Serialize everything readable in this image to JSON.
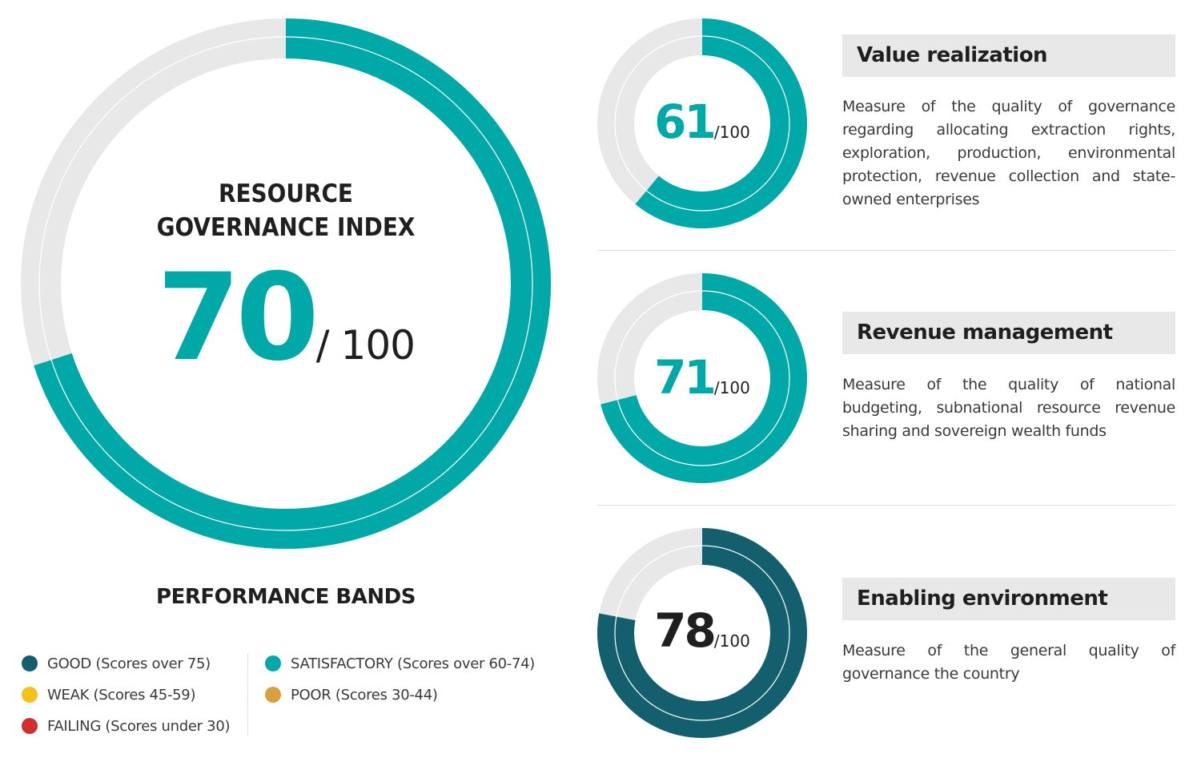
{
  "colors": {
    "accent": "#00a9a8",
    "dark": "#145f6d",
    "track": "#e8e8e8",
    "weak": "#f5c21b",
    "poor": "#d9a03f",
    "failing": "#d12f2f"
  },
  "chart_data": [
    {
      "type": "donut",
      "name": "Resource Governance Index",
      "value": 70,
      "max": 100,
      "color": "#00a9a8"
    },
    {
      "type": "donut",
      "name": "Value realization",
      "value": 61,
      "max": 100,
      "color": "#00a9a8"
    },
    {
      "type": "donut",
      "name": "Revenue management",
      "value": 71,
      "max": 100,
      "color": "#00a9a8"
    },
    {
      "type": "donut",
      "name": "Enabling environment",
      "value": 78,
      "max": 100,
      "color": "#145f6d"
    }
  ],
  "main": {
    "title_line1": "RESOURCE",
    "title_line2": "GOVERNANCE INDEX",
    "score": "70",
    "denominator": "/ 100"
  },
  "components": [
    {
      "score": "61",
      "denominator": "/100",
      "title": "Value realization",
      "description": "Measure of the quality of governance regarding allocating extraction rights, exploration, production, environmental protection, revenue collection and state-owned enterprises"
    },
    {
      "score": "71",
      "denominator": "/100",
      "title": "Revenue management",
      "description": "Measure of the quality of national budgeting, subnational resource revenue sharing and sovereign wealth funds"
    },
    {
      "score": "78",
      "denominator": "/100",
      "title": "Enabling environment",
      "description": "Measure of the general quality of governance the country"
    }
  ],
  "bands": {
    "title": "PERFORMANCE BANDS",
    "items": [
      {
        "label": "GOOD (Scores over 75)",
        "color": "#145f6d"
      },
      {
        "label": "WEAK (Scores 45-59)",
        "color": "#f5c21b"
      },
      {
        "label": "FAILING (Scores under 30)",
        "color": "#d12f2f"
      },
      {
        "label": "SATISFACTORY  (Scores over 60-74)",
        "color": "#00a9a8"
      },
      {
        "label": "POOR  (Scores 30-44)",
        "color": "#d9a03f"
      }
    ]
  }
}
